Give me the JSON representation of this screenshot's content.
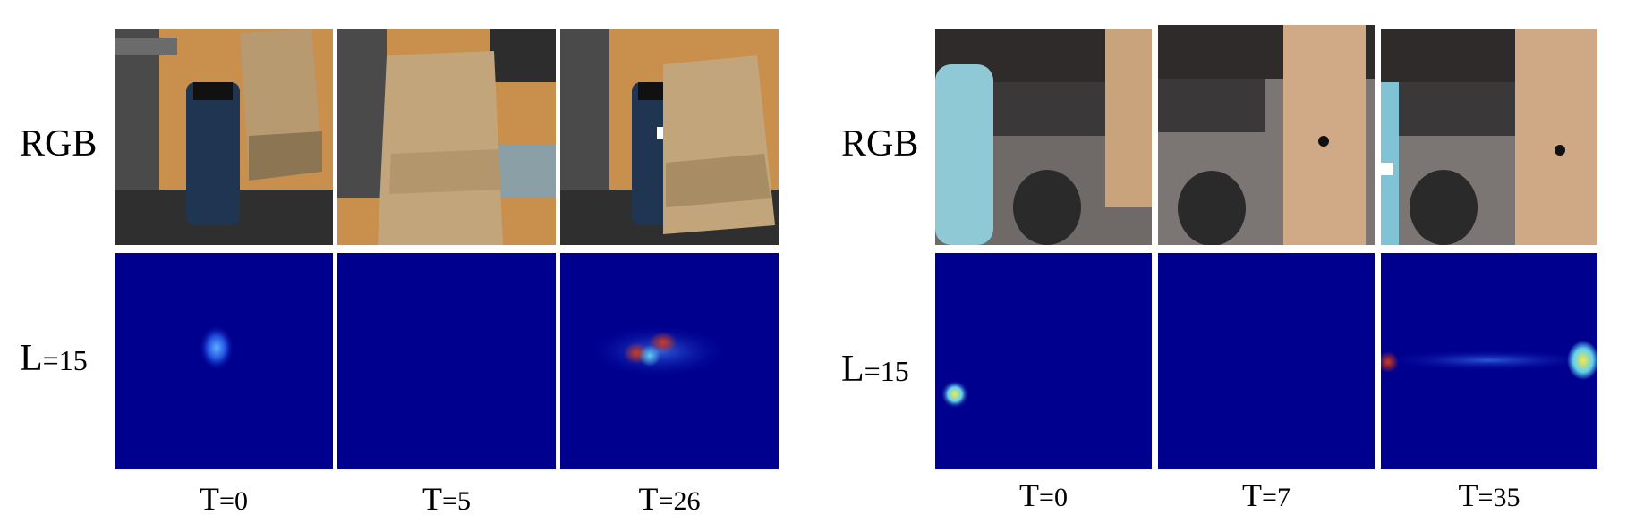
{
  "figure": {
    "panels": [
      {
        "row_labels": {
          "rgb_label": "RGB",
          "l_label_main": "L",
          "l_label_sub": "=15"
        },
        "time_labels": [
          {
            "main": "T",
            "sub": "=0"
          },
          {
            "main": "T",
            "sub": "=5"
          },
          {
            "main": "T",
            "sub": "=26"
          }
        ]
      },
      {
        "row_labels": {
          "rgb_label": "RGB",
          "l_label_main": "L",
          "l_label_sub": "=15"
        },
        "time_labels": [
          {
            "main": "T",
            "sub": "=0"
          },
          {
            "main": "T",
            "sub": "=7"
          },
          {
            "main": "T",
            "sub": "=35"
          }
        ]
      }
    ],
    "colors": {
      "heatmap_background": "#00008f",
      "heatmap_hot": "#d23a1a",
      "heatmap_warm": "#f4e94a",
      "heatmap_cool": "#5fd0f0"
    }
  }
}
